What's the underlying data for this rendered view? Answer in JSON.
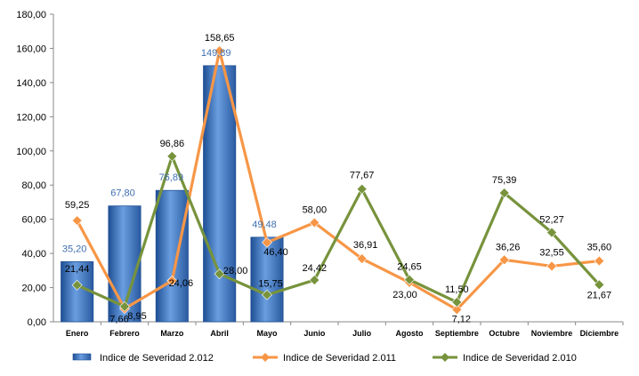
{
  "chart_data": {
    "type": "bar",
    "title": "",
    "xlabel": "",
    "ylabel": "",
    "categories": [
      "Enero",
      "Febrero",
      "Marzo",
      "Abril",
      "Mayo",
      "Junio",
      "Julio",
      "Agosto",
      "Septiembre",
      "Octubre",
      "Noviembre",
      "Diciembre"
    ],
    "ylim": [
      0,
      180
    ],
    "yticks": [
      "0,00",
      "20,00",
      "40,00",
      "60,00",
      "80,00",
      "100,00",
      "120,00",
      "140,00",
      "160,00",
      "180,00"
    ],
    "grid": false,
    "legend_position": "bottom",
    "series": [
      {
        "name": "Indice de Severidad 2.012",
        "type": "bar",
        "color": "#3b78c3",
        "values": [
          35.2,
          67.8,
          76.89,
          149.89,
          49.48,
          null,
          null,
          null,
          null,
          null,
          null,
          null
        ],
        "labels": [
          "35,20",
          "67,80",
          "76,89",
          "149,89",
          "49,48",
          "",
          "",
          "",
          "",
          "",
          "",
          ""
        ]
      },
      {
        "name": "Indice de Severidad 2.011",
        "type": "line",
        "color": "#f79646",
        "values": [
          59.25,
          7.66,
          24.06,
          158.65,
          46.4,
          58.0,
          36.91,
          23.0,
          7.12,
          36.26,
          32.55,
          35.6
        ],
        "labels": [
          "59,25",
          "7,66",
          "24,06",
          "158,65",
          "46,40",
          "58,00",
          "36,91",
          "23,00",
          "7,12",
          "36,26",
          "32,55",
          "35,60"
        ]
      },
      {
        "name": "Indice de Severidad 2.010",
        "type": "line",
        "color": "#77933c",
        "values": [
          21.44,
          8.95,
          96.86,
          28.0,
          15.75,
          24.42,
          77.67,
          24.65,
          11.5,
          75.39,
          52.27,
          21.67
        ],
        "labels": [
          "21,44",
          "8,95",
          "96,86",
          "28,00",
          "15,75",
          "24,42",
          "77,67",
          "24,65",
          "11,50",
          "75,39",
          "52,27",
          "21,67"
        ]
      }
    ]
  }
}
